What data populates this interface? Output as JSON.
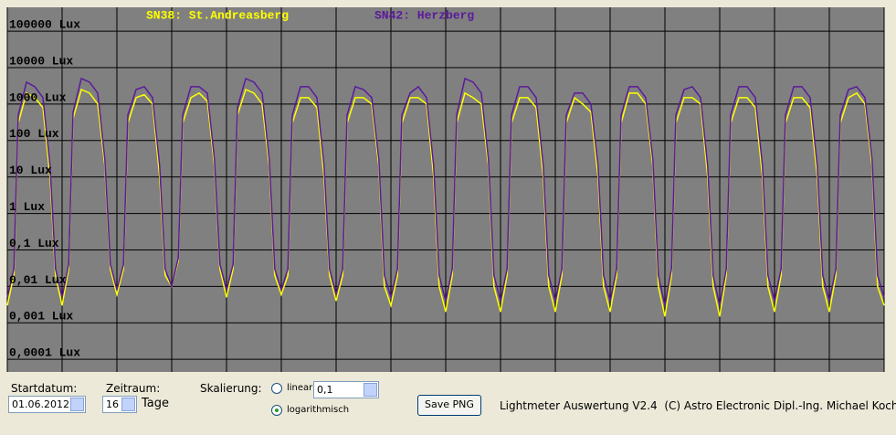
{
  "chart_data": {
    "type": "line",
    "log_scale": true,
    "grid": true,
    "background": "#808080",
    "xlim": [
      0,
      16
    ],
    "xticks": [
      0,
      1,
      2,
      3,
      4,
      5,
      6,
      7,
      8,
      9,
      10,
      11,
      12,
      13,
      14,
      15,
      16
    ],
    "ylim": [
      4.5e-05,
      450000
    ],
    "yticks": [
      {
        "value": 100000,
        "label": "100000 Lux"
      },
      {
        "value": 10000,
        "label": "10000 Lux"
      },
      {
        "value": 1000,
        "label": "1000 Lux"
      },
      {
        "value": 100,
        "label": "100 Lux"
      },
      {
        "value": 10,
        "label": "10 Lux"
      },
      {
        "value": 1,
        "label": "1 Lux"
      },
      {
        "value": 0.1,
        "label": "0,1 Lux"
      },
      {
        "value": 0.01,
        "label": "0,01 Lux"
      },
      {
        "value": 0.001,
        "label": "0,001 Lux"
      },
      {
        "value": 0.0001,
        "label": "0,0001 Lux"
      }
    ],
    "x": [
      0,
      0.12,
      0.2,
      0.35,
      0.5,
      0.65,
      0.78,
      0.88,
      1,
      1.12,
      1.2,
      1.35,
      1.5,
      1.65,
      1.78,
      1.88,
      2,
      2.12,
      2.2,
      2.35,
      2.5,
      2.65,
      2.78,
      2.88,
      3,
      3.12,
      3.2,
      3.35,
      3.5,
      3.65,
      3.78,
      3.88,
      4,
      4.12,
      4.2,
      4.35,
      4.5,
      4.65,
      4.78,
      4.88,
      5,
      5.12,
      5.2,
      5.35,
      5.5,
      5.65,
      5.78,
      5.88,
      6,
      6.12,
      6.2,
      6.35,
      6.5,
      6.65,
      6.78,
      6.88,
      7,
      7.12,
      7.2,
      7.35,
      7.5,
      7.65,
      7.78,
      7.88,
      8,
      8.12,
      8.2,
      8.35,
      8.5,
      8.65,
      8.78,
      8.88,
      9,
      9.12,
      9.2,
      9.35,
      9.5,
      9.65,
      9.78,
      9.88,
      10,
      10.12,
      10.2,
      10.35,
      10.5,
      10.65,
      10.78,
      10.88,
      11,
      11.12,
      11.2,
      11.35,
      11.5,
      11.65,
      11.78,
      11.88,
      12,
      12.12,
      12.2,
      12.35,
      12.5,
      12.65,
      12.78,
      12.88,
      13,
      13.12,
      13.2,
      13.35,
      13.5,
      13.65,
      13.78,
      13.88,
      14,
      14.12,
      14.2,
      14.35,
      14.5,
      14.65,
      14.78,
      14.88,
      15,
      15.12,
      15.2,
      15.35,
      15.5,
      15.65,
      15.78,
      15.88,
      16
    ],
    "series": [
      {
        "name": "SN38: St.Andreasberg",
        "color": "#ffff00",
        "values": [
          0.003,
          0.02,
          300,
          2000,
          1500,
          800,
          10,
          0.02,
          0.003,
          0.03,
          400,
          2500,
          2000,
          1000,
          20,
          0.03,
          0.006,
          0.03,
          300,
          1500,
          1800,
          1000,
          10,
          0.02,
          0.01,
          0.05,
          300,
          1500,
          2000,
          1200,
          20,
          0.03,
          0.005,
          0.03,
          500,
          2500,
          2000,
          1000,
          20,
          0.02,
          0.006,
          0.02,
          300,
          1500,
          1500,
          800,
          10,
          0.02,
          0.004,
          0.02,
          300,
          1500,
          1500,
          1000,
          20,
          0.01,
          0.003,
          0.02,
          300,
          1500,
          1500,
          1000,
          10,
          0.01,
          0.002,
          0.02,
          300,
          2000,
          1500,
          1000,
          20,
          0.01,
          0.002,
          0.02,
          300,
          1500,
          1500,
          800,
          10,
          0.01,
          0.002,
          0.02,
          300,
          1500,
          1000,
          600,
          10,
          0.01,
          0.002,
          0.02,
          300,
          2000,
          2000,
          1000,
          20,
          0.01,
          0.0015,
          0.02,
          300,
          1500,
          1500,
          1000,
          10,
          0.01,
          0.0015,
          0.02,
          300,
          1500,
          1500,
          800,
          10,
          0.01,
          0.002,
          0.02,
          300,
          1500,
          1500,
          800,
          10,
          0.01,
          0.002,
          0.02,
          300,
          1500,
          2000,
          1000,
          20,
          0.01,
          0.003
        ]
      },
      {
        "name": "SN42: Herzberg",
        "color": "#5b1a9c",
        "values": [
          0.005,
          0.03,
          500,
          4000,
          3000,
          1500,
          20,
          0.03,
          0.005,
          0.04,
          600,
          5000,
          4000,
          2000,
          30,
          0.04,
          0.008,
          0.04,
          500,
          2500,
          3000,
          1500,
          20,
          0.03,
          0.01,
          0.06,
          500,
          3000,
          3000,
          2000,
          30,
          0.04,
          0.008,
          0.04,
          800,
          5000,
          4000,
          2000,
          30,
          0.03,
          0.008,
          0.03,
          500,
          3000,
          3000,
          1500,
          20,
          0.03,
          0.006,
          0.03,
          500,
          3000,
          2500,
          1500,
          30,
          0.02,
          0.005,
          0.03,
          500,
          2000,
          3000,
          1500,
          20,
          0.02,
          0.004,
          0.03,
          500,
          5000,
          4000,
          2000,
          30,
          0.02,
          0.004,
          0.03,
          500,
          3000,
          3000,
          1500,
          20,
          0.02,
          0.004,
          0.03,
          500,
          2000,
          2000,
          1000,
          20,
          0.02,
          0.004,
          0.03,
          500,
          3000,
          3000,
          1500,
          30,
          0.02,
          0.003,
          0.03,
          500,
          2500,
          3000,
          1500,
          20,
          0.02,
          0.003,
          0.03,
          500,
          3000,
          3000,
          1500,
          20,
          0.02,
          0.004,
          0.03,
          500,
          3000,
          3000,
          1500,
          20,
          0.02,
          0.004,
          0.03,
          500,
          2500,
          3000,
          1500,
          30,
          0.02,
          0.005
        ]
      }
    ]
  },
  "controls": {
    "start_label": "Startdatum:",
    "start_value": "01.06.2012",
    "period_label": "Zeitraum:",
    "period_value": "16",
    "period_unit": "Tage",
    "scale_label": "Skalierung:",
    "linear": "linear",
    "linear_value": "0,1",
    "log": "logarithmisch",
    "save": "Save PNG",
    "credit": "Lightmeter Auswertung V2.4  (C) Astro Electronic Dipl.-Ing. Michael Koch"
  }
}
